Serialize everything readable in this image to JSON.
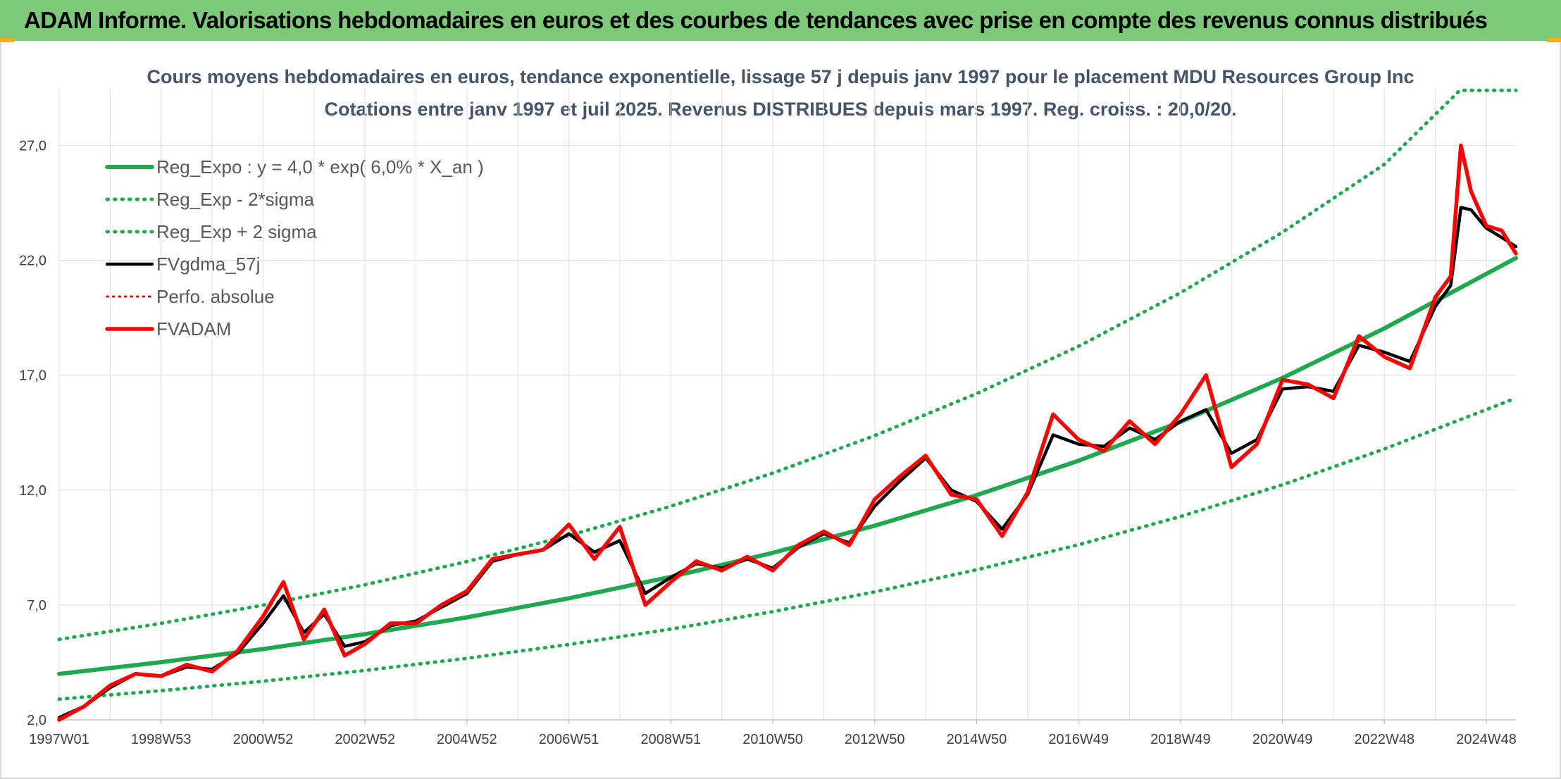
{
  "banner": {
    "title": "ADAM Informe. Valorisations hebdomadaires en euros et des courbes de tendances avec prise en compte des revenus connus distribués"
  },
  "chart_data": {
    "type": "line",
    "title": "Cours moyens hebdomadaires en euros, tendance exponentielle, lissage 57 j depuis janv 1997 pour le placement MDU Resources Group Inc",
    "subtitle": "Cotations entre janv 1997 et juil 2025. Revenus DISTRIBUES depuis mars 1997. Reg. croiss. : 20,0/20.",
    "xlabel": "",
    "ylabel": "",
    "ylim": [
      2.0,
      29.5
    ],
    "xlim": [
      1997.0,
      2025.58
    ],
    "y_ticks": [
      2.0,
      7.0,
      12.0,
      17.0,
      22.0,
      27.0
    ],
    "y_tick_labels": [
      "2,0",
      "7,0",
      "12,0",
      "17,0",
      "22,0",
      "27,0"
    ],
    "x_ticks": [
      1997.0,
      1999.0,
      2001.0,
      2003.0,
      2005.0,
      2007.0,
      2009.0,
      2011.0,
      2013.0,
      2015.0,
      2017.0,
      2019.0,
      2021.0,
      2023.0,
      2025.0
    ],
    "x_tick_labels": [
      "1997W01",
      "1998W53",
      "2000W52",
      "2002W52",
      "2004W52",
      "2006W51",
      "2008W51",
      "2010W50",
      "2012W50",
      "2014W50",
      "2016W49",
      "2018W49",
      "2020W49",
      "2022W48",
      "2024W48"
    ],
    "grid": true,
    "legend_position": "top-left",
    "series": [
      {
        "name": "Reg_Expo : y = 4,0 * exp( 6,0% *  X_an )",
        "style": "solid",
        "color": "#1fa84f",
        "x": [
          1997.0,
          1999.0,
          2001.0,
          2003.0,
          2005.0,
          2007.0,
          2009.0,
          2011.0,
          2013.0,
          2015.0,
          2017.0,
          2019.0,
          2021.0,
          2023.0,
          2025.58
        ],
        "values": [
          4.0,
          4.51,
          5.08,
          5.73,
          6.46,
          7.29,
          8.22,
          9.27,
          10.45,
          11.78,
          13.28,
          14.97,
          16.88,
          19.04,
          22.1
        ]
      },
      {
        "name": "Reg_Exp - 2*sigma",
        "style": "dotted",
        "color": "#1fa84f",
        "x": [
          1997.0,
          1999.0,
          2001.0,
          2003.0,
          2005.0,
          2007.0,
          2009.0,
          2011.0,
          2013.0,
          2015.0,
          2017.0,
          2019.0,
          2021.0,
          2023.0,
          2025.58
        ],
        "values": [
          2.9,
          3.27,
          3.68,
          4.15,
          4.68,
          5.28,
          5.95,
          6.71,
          7.57,
          8.53,
          9.62,
          10.85,
          12.23,
          13.79,
          16.0
        ]
      },
      {
        "name": "Reg_Exp + 2 sigma",
        "style": "dotted",
        "color": "#1fa84f",
        "x": [
          1997.0,
          1999.0,
          2001.0,
          2003.0,
          2005.0,
          2007.0,
          2009.0,
          2011.0,
          2013.0,
          2015.0,
          2017.0,
          2019.0,
          2021.0,
          2023.0,
          2024.48,
          2025.58
        ],
        "values": [
          5.5,
          6.2,
          6.99,
          7.88,
          8.89,
          10.02,
          11.3,
          12.74,
          14.37,
          16.2,
          18.26,
          20.59,
          23.22,
          26.18,
          29.4,
          29.4
        ]
      },
      {
        "name": "FVgdma_57j",
        "style": "solid",
        "color": "#000000",
        "x": [
          1997.0,
          1997.5,
          1998.0,
          1998.5,
          1999.0,
          1999.5,
          2000.0,
          2000.5,
          2001.0,
          2001.4,
          2001.8,
          2002.2,
          2002.6,
          2003.0,
          2003.5,
          2004.0,
          2004.5,
          2005.0,
          2005.5,
          2006.0,
          2006.5,
          2007.0,
          2007.5,
          2008.0,
          2008.5,
          2009.0,
          2009.5,
          2010.0,
          2010.5,
          2011.0,
          2011.5,
          2012.0,
          2012.5,
          2013.0,
          2013.5,
          2014.0,
          2014.5,
          2015.0,
          2015.5,
          2016.0,
          2016.5,
          2017.0,
          2017.5,
          2018.0,
          2018.5,
          2019.0,
          2019.5,
          2020.0,
          2020.5,
          2021.0,
          2021.5,
          2022.0,
          2022.5,
          2023.0,
          2023.5,
          2024.0,
          2024.3,
          2024.5,
          2024.7,
          2025.0,
          2025.3,
          2025.58
        ],
        "values": [
          2.1,
          2.6,
          3.4,
          4.0,
          3.9,
          4.3,
          4.2,
          4.9,
          6.2,
          7.4,
          5.8,
          6.6,
          5.2,
          5.4,
          6.1,
          6.3,
          6.9,
          7.5,
          8.9,
          9.2,
          9.4,
          10.1,
          9.3,
          9.8,
          7.5,
          8.2,
          8.8,
          8.6,
          9.0,
          8.6,
          9.5,
          10.1,
          9.7,
          11.3,
          12.4,
          13.4,
          12.0,
          11.5,
          10.3,
          11.8,
          14.4,
          14.0,
          13.9,
          14.7,
          14.2,
          15.0,
          15.5,
          13.6,
          14.2,
          16.4,
          16.5,
          16.3,
          18.3,
          18.0,
          17.6,
          20.0,
          20.9,
          24.3,
          24.2,
          23.4,
          23.0,
          22.6
        ]
      },
      {
        "name": "Perfo. absolue",
        "style": "dotted",
        "color": "#e00000",
        "x": [
          1997.0,
          1997.5,
          1998.0,
          1998.5,
          1999.0,
          1999.5,
          2000.0,
          2000.5,
          2001.0,
          2001.4,
          2001.8,
          2002.2,
          2002.6,
          2003.0,
          2003.5,
          2004.0,
          2004.5,
          2005.0,
          2005.5,
          2006.0,
          2006.5,
          2007.0,
          2007.5,
          2008.0,
          2008.5,
          2009.0,
          2009.5,
          2010.0,
          2010.5,
          2011.0,
          2011.5,
          2012.0,
          2012.5,
          2013.0,
          2013.5,
          2014.0,
          2014.5,
          2015.0,
          2015.5,
          2016.0,
          2016.5,
          2017.0,
          2017.5,
          2018.0,
          2018.5,
          2019.0,
          2019.5,
          2020.0,
          2020.5,
          2021.0,
          2021.5,
          2022.0,
          2022.5,
          2023.0,
          2023.5,
          2024.0,
          2024.3,
          2024.5,
          2024.7,
          2025.0,
          2025.3,
          2025.58
        ],
        "values": [
          2.0,
          2.6,
          3.5,
          4.0,
          3.9,
          4.4,
          4.1,
          5.0,
          6.5,
          8.0,
          5.5,
          6.8,
          4.8,
          5.3,
          6.2,
          6.2,
          7.0,
          7.6,
          9.0,
          9.2,
          9.4,
          10.5,
          9.0,
          10.4,
          7.0,
          8.0,
          8.9,
          8.5,
          9.1,
          8.5,
          9.6,
          10.2,
          9.6,
          11.6,
          12.6,
          13.5,
          11.8,
          11.6,
          10.0,
          11.9,
          15.3,
          14.2,
          13.7,
          15.0,
          14.0,
          15.3,
          17.0,
          13.0,
          14.0,
          16.8,
          16.6,
          16.0,
          18.7,
          17.8,
          17.3,
          20.4,
          21.3,
          27.0,
          25.0,
          23.5,
          23.3,
          22.3
        ]
      },
      {
        "name": "FVADAM",
        "style": "solid",
        "color": "#ff0000",
        "x": [
          1997.0,
          1997.5,
          1998.0,
          1998.5,
          1999.0,
          1999.5,
          2000.0,
          2000.5,
          2001.0,
          2001.4,
          2001.8,
          2002.2,
          2002.6,
          2003.0,
          2003.5,
          2004.0,
          2004.5,
          2005.0,
          2005.5,
          2006.0,
          2006.5,
          2007.0,
          2007.5,
          2008.0,
          2008.5,
          2009.0,
          2009.5,
          2010.0,
          2010.5,
          2011.0,
          2011.5,
          2012.0,
          2012.5,
          2013.0,
          2013.5,
          2014.0,
          2014.5,
          2015.0,
          2015.5,
          2016.0,
          2016.5,
          2017.0,
          2017.5,
          2018.0,
          2018.5,
          2019.0,
          2019.5,
          2020.0,
          2020.5,
          2021.0,
          2021.5,
          2022.0,
          2022.5,
          2023.0,
          2023.5,
          2024.0,
          2024.3,
          2024.5,
          2024.7,
          2025.0,
          2025.3,
          2025.58
        ],
        "values": [
          2.0,
          2.6,
          3.5,
          4.0,
          3.9,
          4.4,
          4.1,
          5.0,
          6.5,
          8.0,
          5.5,
          6.8,
          4.8,
          5.3,
          6.2,
          6.2,
          7.0,
          7.6,
          9.0,
          9.2,
          9.4,
          10.5,
          9.0,
          10.4,
          7.0,
          8.0,
          8.9,
          8.5,
          9.1,
          8.5,
          9.6,
          10.2,
          9.6,
          11.6,
          12.6,
          13.5,
          11.8,
          11.6,
          10.0,
          11.9,
          15.3,
          14.2,
          13.7,
          15.0,
          14.0,
          15.3,
          17.0,
          13.0,
          14.0,
          16.8,
          16.6,
          16.0,
          18.7,
          17.8,
          17.3,
          20.4,
          21.3,
          27.0,
          25.0,
          23.5,
          23.3,
          22.3
        ]
      }
    ]
  }
}
